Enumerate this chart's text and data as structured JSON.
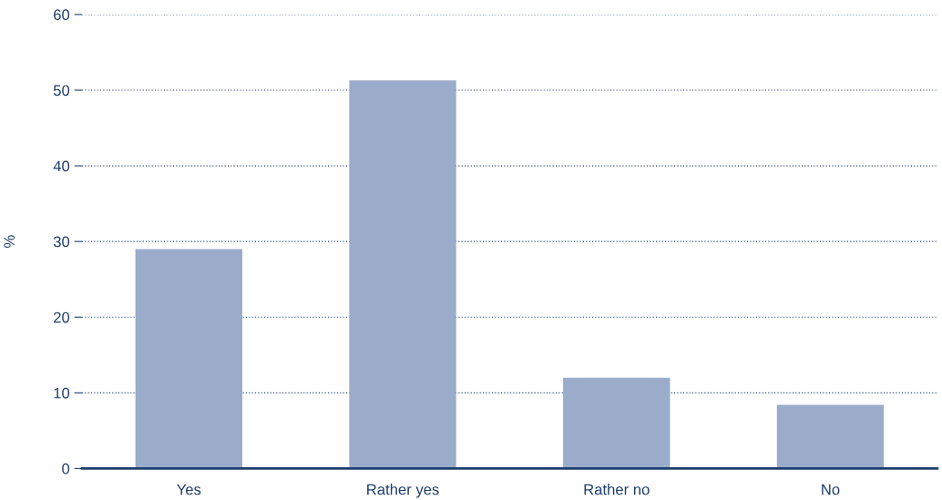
{
  "chart_data": {
    "type": "bar",
    "ylabel": "%",
    "categories": [
      "Yes",
      "Rather yes",
      "Rather no",
      "No"
    ],
    "values": [
      29.0,
      51.3,
      12.0,
      8.4
    ],
    "color": "#9baccb",
    "ylim": [
      0,
      60
    ],
    "yticks": [
      0,
      10,
      20,
      30,
      40,
      50,
      60
    ],
    "grid": "y"
  }
}
